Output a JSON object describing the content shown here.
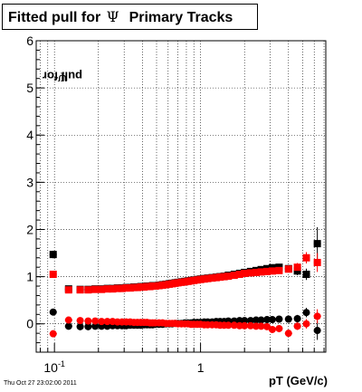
{
  "title": {
    "prefix": "Fitted pull for",
    "symbol": "Ψ",
    "suffix": "Primary Tracks"
  },
  "axes": {
    "xlabel": "pT (GeV/c)",
    "ylabel_prefix": "pull for",
    "ylabel_symbol": "Ψ"
  },
  "timestamp": "Thu Oct 27 23:02:00 2011",
  "chart_data": {
    "type": "scatter",
    "title": "Fitted pull for Ψ Primary Tracks",
    "xlabel": "pT (GeV/c)",
    "ylabel": "pull for Ψ",
    "xscale": "log",
    "xlim": [
      0.075,
      7.2
    ],
    "ylim": [
      -0.6,
      6
    ],
    "xticks": [
      {
        "value": 0.1,
        "label": "10",
        "sup": "-1"
      },
      {
        "value": 1,
        "label": "1",
        "sup": ""
      }
    ],
    "yticks": [
      0,
      1,
      2,
      3,
      4,
      5,
      6
    ],
    "grid": true,
    "colors": {
      "sigma_black": "#000000",
      "sigma_red": "#ff0000",
      "mean_black": "#000000",
      "mean_red": "#ff0000"
    },
    "series": [
      {
        "marker": "square",
        "color": "#000000",
        "x": [
          0.098,
          0.125,
          0.15,
          0.17,
          0.19,
          0.21,
          0.23,
          0.25,
          0.27,
          0.29,
          0.31,
          0.33,
          0.35,
          0.37,
          0.39,
          0.41,
          0.43,
          0.45,
          0.47,
          0.49,
          0.52,
          0.55,
          0.58,
          0.61,
          0.64,
          0.67,
          0.7,
          0.74,
          0.78,
          0.82,
          0.86,
          0.9,
          0.95,
          1.0,
          1.06,
          1.12,
          1.2,
          1.28,
          1.36,
          1.45,
          1.55,
          1.7,
          1.85,
          2.0,
          2.2,
          2.4,
          2.6,
          2.85,
          3.1,
          3.45,
          4.0,
          4.6,
          5.3,
          6.3
        ],
        "y": [
          1.47,
          0.74,
          0.73,
          0.73,
          0.74,
          0.74,
          0.75,
          0.75,
          0.76,
          0.76,
          0.77,
          0.77,
          0.78,
          0.78,
          0.79,
          0.79,
          0.8,
          0.8,
          0.81,
          0.81,
          0.82,
          0.83,
          0.84,
          0.85,
          0.86,
          0.87,
          0.88,
          0.89,
          0.9,
          0.91,
          0.92,
          0.93,
          0.94,
          0.95,
          0.96,
          0.97,
          0.98,
          0.99,
          1.0,
          1.01,
          1.03,
          1.05,
          1.07,
          1.09,
          1.11,
          1.13,
          1.15,
          1.17,
          1.19,
          1.2,
          1.17,
          1.12,
          1.05,
          1.7
        ],
        "yerr": [
          0.08,
          0.04,
          0.02,
          0.02,
          0.01,
          0.01,
          0.01,
          0.01,
          0.01,
          0.01,
          0.01,
          0.01,
          0.01,
          0.01,
          0.01,
          0.01,
          0.01,
          0.01,
          0.01,
          0.01,
          0.01,
          0.01,
          0.01,
          0.01,
          0.01,
          0.01,
          0.01,
          0.01,
          0.01,
          0.01,
          0.01,
          0.01,
          0.01,
          0.01,
          0.01,
          0.01,
          0.01,
          0.01,
          0.01,
          0.01,
          0.01,
          0.02,
          0.02,
          0.02,
          0.03,
          0.03,
          0.03,
          0.04,
          0.05,
          0.06,
          0.07,
          0.09,
          0.12,
          0.35
        ]
      },
      {
        "marker": "square",
        "color": "#ff0000",
        "x": [
          0.098,
          0.125,
          0.15,
          0.17,
          0.19,
          0.21,
          0.23,
          0.25,
          0.27,
          0.29,
          0.31,
          0.33,
          0.35,
          0.37,
          0.39,
          0.41,
          0.43,
          0.45,
          0.47,
          0.49,
          0.52,
          0.55,
          0.58,
          0.61,
          0.64,
          0.67,
          0.7,
          0.74,
          0.78,
          0.82,
          0.86,
          0.9,
          0.95,
          1.0,
          1.06,
          1.12,
          1.2,
          1.28,
          1.36,
          1.45,
          1.55,
          1.7,
          1.85,
          2.0,
          2.2,
          2.4,
          2.6,
          2.85,
          3.1,
          3.45,
          4.0,
          4.6,
          5.3,
          6.3
        ],
        "y": [
          1.05,
          0.72,
          0.72,
          0.72,
          0.73,
          0.73,
          0.74,
          0.74,
          0.75,
          0.75,
          0.76,
          0.76,
          0.77,
          0.77,
          0.78,
          0.78,
          0.79,
          0.79,
          0.8,
          0.8,
          0.81,
          0.82,
          0.83,
          0.84,
          0.85,
          0.86,
          0.87,
          0.88,
          0.89,
          0.9,
          0.91,
          0.92,
          0.93,
          0.94,
          0.95,
          0.96,
          0.97,
          0.98,
          0.99,
          1.0,
          1.01,
          1.03,
          1.05,
          1.07,
          1.08,
          1.09,
          1.1,
          1.11,
          1.12,
          1.13,
          1.16,
          1.2,
          1.4,
          1.3
        ],
        "yerr": [
          0.07,
          0.03,
          0.02,
          0.02,
          0.01,
          0.01,
          0.01,
          0.01,
          0.01,
          0.01,
          0.01,
          0.01,
          0.01,
          0.01,
          0.01,
          0.01,
          0.01,
          0.01,
          0.01,
          0.01,
          0.01,
          0.01,
          0.01,
          0.01,
          0.01,
          0.01,
          0.01,
          0.01,
          0.01,
          0.01,
          0.01,
          0.01,
          0.01,
          0.01,
          0.01,
          0.01,
          0.01,
          0.01,
          0.01,
          0.01,
          0.01,
          0.02,
          0.02,
          0.02,
          0.02,
          0.03,
          0.03,
          0.04,
          0.05,
          0.06,
          0.07,
          0.09,
          0.12,
          0.2
        ]
      },
      {
        "marker": "circle",
        "color": "#000000",
        "x": [
          0.098,
          0.125,
          0.15,
          0.17,
          0.19,
          0.21,
          0.23,
          0.25,
          0.27,
          0.29,
          0.31,
          0.33,
          0.35,
          0.37,
          0.39,
          0.41,
          0.43,
          0.45,
          0.47,
          0.49,
          0.52,
          0.55,
          0.58,
          0.61,
          0.64,
          0.67,
          0.7,
          0.74,
          0.78,
          0.82,
          0.86,
          0.9,
          0.95,
          1.0,
          1.06,
          1.12,
          1.2,
          1.28,
          1.36,
          1.45,
          1.55,
          1.7,
          1.85,
          2.0,
          2.2,
          2.4,
          2.6,
          2.85,
          3.1,
          3.45,
          4.0,
          4.6,
          5.3,
          6.3
        ],
        "y": [
          0.25,
          -0.05,
          -0.06,
          -0.06,
          -0.05,
          -0.05,
          -0.05,
          -0.04,
          -0.04,
          -0.04,
          -0.04,
          -0.03,
          -0.03,
          -0.03,
          -0.03,
          -0.02,
          -0.02,
          -0.02,
          -0.02,
          -0.01,
          -0.01,
          -0.01,
          0.0,
          0.0,
          0.0,
          0.01,
          0.01,
          0.01,
          0.02,
          0.02,
          0.02,
          0.03,
          0.03,
          0.03,
          0.04,
          0.04,
          0.04,
          0.05,
          0.05,
          0.05,
          0.06,
          0.06,
          0.07,
          0.07,
          0.07,
          0.08,
          0.08,
          0.09,
          0.09,
          0.1,
          0.1,
          0.11,
          0.24,
          -0.14
        ],
        "yerr": [
          0.05,
          0.03,
          0.02,
          0.02,
          0.01,
          0.01,
          0.01,
          0.01,
          0.01,
          0.01,
          0.01,
          0.01,
          0.01,
          0.01,
          0.01,
          0.01,
          0.01,
          0.01,
          0.01,
          0.01,
          0.01,
          0.01,
          0.01,
          0.01,
          0.01,
          0.01,
          0.01,
          0.01,
          0.01,
          0.01,
          0.01,
          0.01,
          0.01,
          0.01,
          0.01,
          0.01,
          0.01,
          0.01,
          0.01,
          0.01,
          0.01,
          0.02,
          0.02,
          0.02,
          0.02,
          0.03,
          0.03,
          0.03,
          0.04,
          0.05,
          0.06,
          0.08,
          0.1,
          0.2
        ]
      },
      {
        "marker": "circle",
        "color": "#ff0000",
        "x": [
          0.098,
          0.125,
          0.15,
          0.17,
          0.19,
          0.21,
          0.23,
          0.25,
          0.27,
          0.29,
          0.31,
          0.33,
          0.35,
          0.37,
          0.39,
          0.41,
          0.43,
          0.45,
          0.47,
          0.49,
          0.52,
          0.55,
          0.58,
          0.61,
          0.64,
          0.67,
          0.7,
          0.74,
          0.78,
          0.82,
          0.86,
          0.9,
          0.95,
          1.0,
          1.06,
          1.12,
          1.2,
          1.28,
          1.36,
          1.45,
          1.55,
          1.7,
          1.85,
          2.0,
          2.2,
          2.4,
          2.6,
          2.85,
          3.1,
          3.45,
          4.0,
          4.6,
          5.3,
          6.3
        ],
        "y": [
          -0.21,
          0.08,
          0.07,
          0.06,
          0.06,
          0.05,
          0.05,
          0.05,
          0.04,
          0.04,
          0.04,
          0.04,
          0.03,
          0.03,
          0.03,
          0.03,
          0.03,
          0.02,
          0.02,
          0.02,
          0.02,
          0.02,
          0.01,
          0.01,
          0.01,
          0.01,
          0.0,
          0.0,
          0.0,
          0.0,
          -0.01,
          -0.01,
          -0.01,
          -0.01,
          -0.02,
          -0.02,
          -0.02,
          -0.02,
          -0.03,
          -0.03,
          -0.03,
          -0.03,
          -0.04,
          -0.04,
          -0.04,
          -0.05,
          -0.05,
          -0.06,
          -0.12,
          -0.1,
          -0.2,
          -0.05,
          0.0,
          0.16
        ],
        "yerr": [
          0.05,
          0.03,
          0.02,
          0.02,
          0.01,
          0.01,
          0.01,
          0.01,
          0.01,
          0.01,
          0.01,
          0.01,
          0.01,
          0.01,
          0.01,
          0.01,
          0.01,
          0.01,
          0.01,
          0.01,
          0.01,
          0.01,
          0.01,
          0.01,
          0.01,
          0.01,
          0.01,
          0.01,
          0.01,
          0.01,
          0.01,
          0.01,
          0.01,
          0.01,
          0.01,
          0.01,
          0.01,
          0.01,
          0.01,
          0.01,
          0.01,
          0.02,
          0.02,
          0.02,
          0.02,
          0.03,
          0.03,
          0.03,
          0.04,
          0.05,
          0.06,
          0.08,
          0.1,
          0.15
        ]
      }
    ]
  }
}
